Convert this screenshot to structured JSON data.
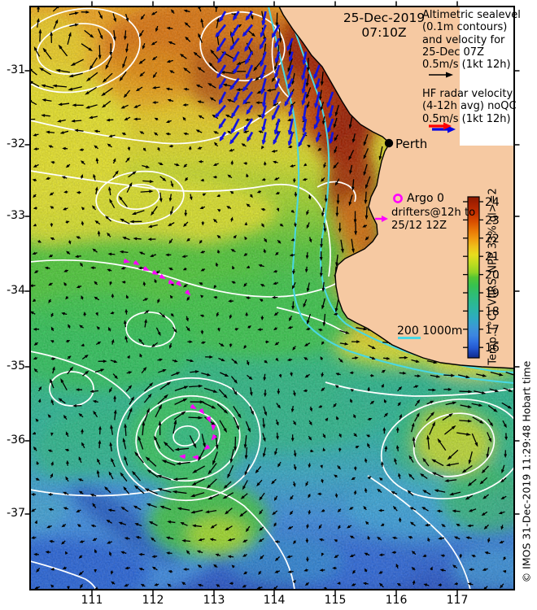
{
  "header": {
    "date": "25-Dec-2019",
    "time": "07:10Z"
  },
  "legend": {
    "altimetric_lines": [
      "Altimetric sealevel",
      "(0.1m contours)",
      "and velocity for",
      "25-Dec 07Z",
      "0.5m/s (1kt 12h)"
    ],
    "hf_lines": [
      "HF radar velocity",
      "(4-12h avg) noQC",
      "0.5m/s (1kt 12h)"
    ],
    "argo_label": "Argo 0",
    "drifters_line1": "drifters@12h to",
    "drifters_line2": "25/12 12Z",
    "scale_label": "200  1000m"
  },
  "map": {
    "city": "Perth"
  },
  "colorbar": {
    "label": "Temp. (°C) VIIRS_NPP 33% ql>=2",
    "ticks": [
      "24",
      "23",
      "22",
      "21",
      "20",
      "19",
      "18",
      "17",
      "16"
    ]
  },
  "axes": {
    "x_ticks": [
      "111",
      "112",
      "113",
      "114",
      "115",
      "116",
      "117"
    ],
    "y_ticks": [
      "-31",
      "-32",
      "-33",
      "-34",
      "-35",
      "-36",
      "-37"
    ]
  },
  "credit": "© IMOS 31-Dec-2019 11:29:48 Hobart time",
  "colors": {
    "land": "#F6C9A2",
    "contour_white": "#FFFFFF",
    "bathy_cyan": "#49D8E4",
    "drifter_magenta": "#FF00FF",
    "hf_blue": "#1414DF",
    "vector_black": "#000000",
    "legend_arrow_red": "#FF0000",
    "legend_arrow_blue": "#0000E6"
  },
  "overlays": {
    "perth_xy": [
      478,
      176
    ],
    "argo_xy": [
      489,
      244
    ],
    "drifter_tracks": [
      [
        [
          158,
          322
        ],
        [
          170,
          325
        ],
        [
          182,
          332
        ],
        [
          193,
          337
        ],
        [
          202,
          342
        ],
        [
          213,
          348
        ],
        [
          222,
          351
        ],
        [
          233,
          362
        ]
      ],
      [
        [
          240,
          502
        ],
        [
          250,
          508
        ],
        [
          258,
          518
        ],
        [
          262,
          528
        ],
        [
          261,
          540
        ],
        [
          252,
          552
        ],
        [
          238,
          562
        ],
        [
          222,
          561
        ]
      ]
    ]
  }
}
